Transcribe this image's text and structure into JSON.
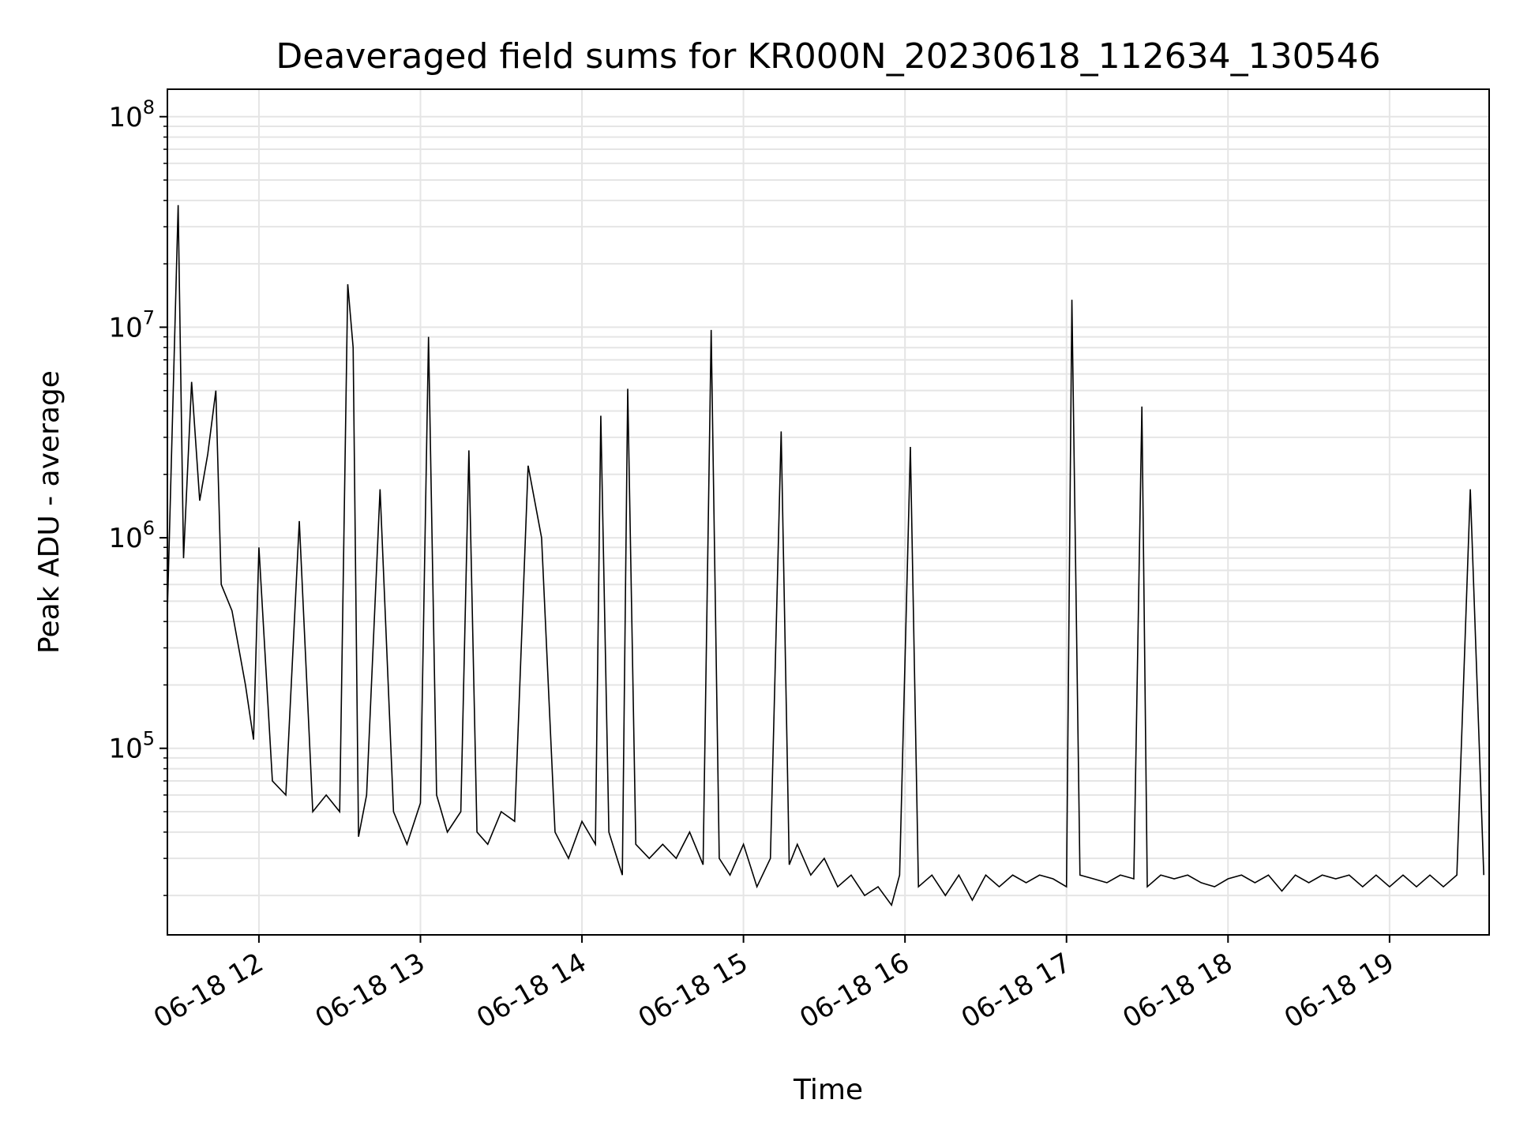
{
  "chart_data": {
    "type": "line",
    "title": "Deaveraged field sums for KR000N_20230618_112634_130546",
    "xlabel": "Time",
    "ylabel": "Peak ADU - average",
    "y_scale": "log",
    "ylim": [
      13000,
      135000000
    ],
    "xlim": [
      "2023-06-18 11:26",
      "2023-06-18 19:37"
    ],
    "grid": true,
    "line_color": "#000000",
    "grid_color": "#e5e5e5",
    "x_ticks": [
      {
        "value": "2023-06-18 12:00",
        "label": "06-18 12"
      },
      {
        "value": "2023-06-18 13:00",
        "label": "06-18 13"
      },
      {
        "value": "2023-06-18 14:00",
        "label": "06-18 14"
      },
      {
        "value": "2023-06-18 15:00",
        "label": "06-18 15"
      },
      {
        "value": "2023-06-18 16:00",
        "label": "06-18 16"
      },
      {
        "value": "2023-06-18 17:00",
        "label": "06-18 17"
      },
      {
        "value": "2023-06-18 18:00",
        "label": "06-18 18"
      },
      {
        "value": "2023-06-18 19:00",
        "label": "06-18 19"
      }
    ],
    "y_ticks": [
      {
        "value": 100000,
        "base": "10",
        "exp": "5"
      },
      {
        "value": 1000000,
        "base": "10",
        "exp": "6"
      },
      {
        "value": 10000000,
        "base": "10",
        "exp": "7"
      },
      {
        "value": 100000000,
        "base": "10",
        "exp": "8"
      }
    ],
    "series": [
      {
        "points": [
          [
            "2023-06-18 11:26",
            450000
          ],
          [
            "2023-06-18 11:30",
            38000000
          ],
          [
            "2023-06-18 11:32",
            800000
          ],
          [
            "2023-06-18 11:35",
            5500000
          ],
          [
            "2023-06-18 11:38",
            1500000
          ],
          [
            "2023-06-18 11:41",
            2500000
          ],
          [
            "2023-06-18 11:44",
            5000000
          ],
          [
            "2023-06-18 11:46",
            600000
          ],
          [
            "2023-06-18 11:50",
            450000
          ],
          [
            "2023-06-18 11:55",
            200000
          ],
          [
            "2023-06-18 11:58",
            110000
          ],
          [
            "2023-06-18 12:00",
            900000
          ],
          [
            "2023-06-18 12:05",
            70000
          ],
          [
            "2023-06-18 12:10",
            60000
          ],
          [
            "2023-06-18 12:15",
            1200000
          ],
          [
            "2023-06-18 12:20",
            50000
          ],
          [
            "2023-06-18 12:25",
            60000
          ],
          [
            "2023-06-18 12:30",
            50000
          ],
          [
            "2023-06-18 12:33",
            16000000
          ],
          [
            "2023-06-18 12:35",
            8000000
          ],
          [
            "2023-06-18 12:37",
            38000
          ],
          [
            "2023-06-18 12:40",
            60000
          ],
          [
            "2023-06-18 12:45",
            1700000
          ],
          [
            "2023-06-18 12:50",
            50000
          ],
          [
            "2023-06-18 12:55",
            35000
          ],
          [
            "2023-06-18 13:00",
            55000
          ],
          [
            "2023-06-18 13:03",
            9000000
          ],
          [
            "2023-06-18 13:06",
            60000
          ],
          [
            "2023-06-18 13:10",
            40000
          ],
          [
            "2023-06-18 13:15",
            50000
          ],
          [
            "2023-06-18 13:18",
            2600000
          ],
          [
            "2023-06-18 13:21",
            40000
          ],
          [
            "2023-06-18 13:25",
            35000
          ],
          [
            "2023-06-18 13:30",
            50000
          ],
          [
            "2023-06-18 13:35",
            45000
          ],
          [
            "2023-06-18 13:40",
            2200000
          ],
          [
            "2023-06-18 13:45",
            1000000
          ],
          [
            "2023-06-18 13:50",
            40000
          ],
          [
            "2023-06-18 13:55",
            30000
          ],
          [
            "2023-06-18 14:00",
            45000
          ],
          [
            "2023-06-18 14:05",
            35000
          ],
          [
            "2023-06-18 14:07",
            3800000
          ],
          [
            "2023-06-18 14:10",
            40000
          ],
          [
            "2023-06-18 14:15",
            25000
          ],
          [
            "2023-06-18 14:17",
            5100000
          ],
          [
            "2023-06-18 14:20",
            35000
          ],
          [
            "2023-06-18 14:25",
            30000
          ],
          [
            "2023-06-18 14:30",
            35000
          ],
          [
            "2023-06-18 14:35",
            30000
          ],
          [
            "2023-06-18 14:40",
            40000
          ],
          [
            "2023-06-18 14:45",
            28000
          ],
          [
            "2023-06-18 14:48",
            9700000
          ],
          [
            "2023-06-18 14:51",
            30000
          ],
          [
            "2023-06-18 14:55",
            25000
          ],
          [
            "2023-06-18 15:00",
            35000
          ],
          [
            "2023-06-18 15:05",
            22000
          ],
          [
            "2023-06-18 15:10",
            30000
          ],
          [
            "2023-06-18 15:14",
            3200000
          ],
          [
            "2023-06-18 15:17",
            28000
          ],
          [
            "2023-06-18 15:20",
            35000
          ],
          [
            "2023-06-18 15:25",
            25000
          ],
          [
            "2023-06-18 15:30",
            30000
          ],
          [
            "2023-06-18 15:35",
            22000
          ],
          [
            "2023-06-18 15:40",
            25000
          ],
          [
            "2023-06-18 15:45",
            20000
          ],
          [
            "2023-06-18 15:50",
            22000
          ],
          [
            "2023-06-18 15:55",
            18000
          ],
          [
            "2023-06-18 15:58",
            25000
          ],
          [
            "2023-06-18 16:02",
            2700000
          ],
          [
            "2023-06-18 16:05",
            22000
          ],
          [
            "2023-06-18 16:10",
            25000
          ],
          [
            "2023-06-18 16:15",
            20000
          ],
          [
            "2023-06-18 16:20",
            25000
          ],
          [
            "2023-06-18 16:25",
            19000
          ],
          [
            "2023-06-18 16:30",
            25000
          ],
          [
            "2023-06-18 16:35",
            22000
          ],
          [
            "2023-06-18 16:40",
            25000
          ],
          [
            "2023-06-18 16:45",
            23000
          ],
          [
            "2023-06-18 16:50",
            25000
          ],
          [
            "2023-06-18 16:55",
            24000
          ],
          [
            "2023-06-18 17:00",
            22000
          ],
          [
            "2023-06-18 17:02",
            13500000
          ],
          [
            "2023-06-18 17:05",
            25000
          ],
          [
            "2023-06-18 17:10",
            24000
          ],
          [
            "2023-06-18 17:15",
            23000
          ],
          [
            "2023-06-18 17:20",
            25000
          ],
          [
            "2023-06-18 17:25",
            24000
          ],
          [
            "2023-06-18 17:28",
            4200000
          ],
          [
            "2023-06-18 17:30",
            22000
          ],
          [
            "2023-06-18 17:35",
            25000
          ],
          [
            "2023-06-18 17:40",
            24000
          ],
          [
            "2023-06-18 17:45",
            25000
          ],
          [
            "2023-06-18 17:50",
            23000
          ],
          [
            "2023-06-18 17:55",
            22000
          ],
          [
            "2023-06-18 18:00",
            24000
          ],
          [
            "2023-06-18 18:05",
            25000
          ],
          [
            "2023-06-18 18:10",
            23000
          ],
          [
            "2023-06-18 18:15",
            25000
          ],
          [
            "2023-06-18 18:20",
            21000
          ],
          [
            "2023-06-18 18:25",
            25000
          ],
          [
            "2023-06-18 18:30",
            23000
          ],
          [
            "2023-06-18 18:35",
            25000
          ],
          [
            "2023-06-18 18:40",
            24000
          ],
          [
            "2023-06-18 18:45",
            25000
          ],
          [
            "2023-06-18 18:50",
            22000
          ],
          [
            "2023-06-18 18:55",
            25000
          ],
          [
            "2023-06-18 19:00",
            22000
          ],
          [
            "2023-06-18 19:05",
            25000
          ],
          [
            "2023-06-18 19:10",
            22000
          ],
          [
            "2023-06-18 19:15",
            25000
          ],
          [
            "2023-06-18 19:20",
            22000
          ],
          [
            "2023-06-18 19:25",
            25000
          ],
          [
            "2023-06-18 19:30",
            1700000
          ],
          [
            "2023-06-18 19:35",
            25000
          ]
        ]
      }
    ]
  }
}
